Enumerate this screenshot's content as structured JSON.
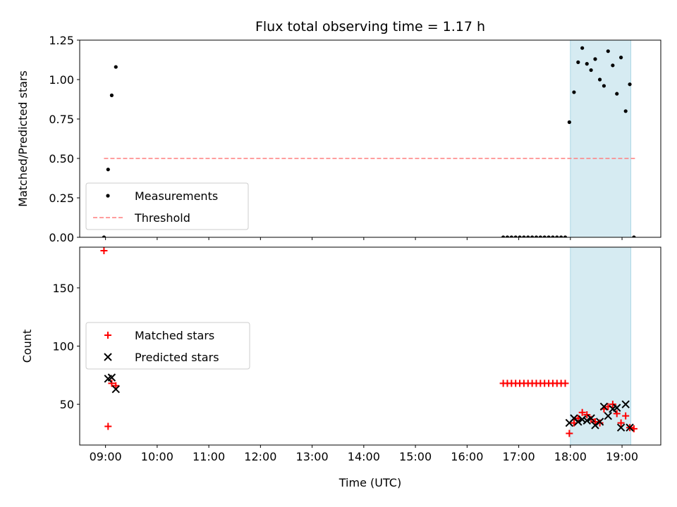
{
  "chart_data": [
    {
      "type": "scatter",
      "title": "Flux total observing time = 1.17 h",
      "xlabel": "",
      "ylabel": "Matched/Predicted stars",
      "xlim": [
        8.5,
        19.75
      ],
      "ylim": [
        0,
        1.25
      ],
      "yticks": [
        0,
        0.25,
        0.5,
        0.75,
        1.0,
        1.25
      ],
      "ytick_labels": [
        "0.00",
        "0.25",
        "0.50",
        "0.75",
        "1.00",
        "1.25"
      ],
      "grid": false,
      "legend_position": "lower-left",
      "highlight_span": [
        18.0,
        19.17
      ],
      "series": [
        {
          "name": "Measurements",
          "marker": "dot",
          "color": "#000000",
          "x": [
            8.97,
            9.05,
            9.12,
            9.2,
            16.7,
            16.78,
            16.86,
            16.94,
            17.02,
            17.1,
            17.18,
            17.26,
            17.34,
            17.42,
            17.5,
            17.58,
            17.66,
            17.74,
            17.82,
            17.9,
            17.98,
            18.07,
            18.15,
            18.23,
            18.32,
            18.4,
            18.48,
            18.57,
            18.65,
            18.73,
            18.82,
            18.9,
            18.98,
            19.07,
            19.15,
            19.23
          ],
          "y": [
            0.0,
            0.43,
            0.9,
            1.08,
            0.0,
            0.0,
            0.0,
            0.0,
            0.0,
            0.0,
            0.0,
            0.0,
            0.0,
            0.0,
            0.0,
            0.0,
            0.0,
            0.0,
            0.0,
            0.0,
            0.73,
            0.92,
            1.11,
            1.2,
            1.1,
            1.06,
            1.13,
            1.0,
            0.96,
            1.18,
            1.09,
            0.91,
            1.14,
            0.8,
            0.97,
            0.0
          ]
        },
        {
          "name": "Threshold",
          "line_style": "dashed",
          "color": "#ff7f7f",
          "x": [
            8.97,
            19.25
          ],
          "y": [
            0.5,
            0.5
          ]
        }
      ]
    },
    {
      "type": "scatter",
      "title": "",
      "xlabel": "Time (UTC)",
      "ylabel": "Count",
      "xlim": [
        8.5,
        19.75
      ],
      "ylim": [
        15,
        185
      ],
      "xticks": [
        9,
        10,
        11,
        12,
        13,
        14,
        15,
        16,
        17,
        18,
        19
      ],
      "xtick_labels": [
        "09:00",
        "10:00",
        "11:00",
        "12:00",
        "13:00",
        "14:00",
        "15:00",
        "16:00",
        "17:00",
        "18:00",
        "19:00"
      ],
      "yticks": [
        50,
        100,
        150
      ],
      "ytick_labels": [
        "50",
        "100",
        "150"
      ],
      "grid": false,
      "legend_position": "center-left",
      "highlight_span": [
        18.0,
        19.17
      ],
      "series": [
        {
          "name": "Matched stars",
          "marker": "plus",
          "color": "#ff0000",
          "x": [
            8.97,
            9.05,
            9.12,
            9.2,
            16.7,
            16.78,
            16.86,
            16.94,
            17.02,
            17.1,
            17.18,
            17.26,
            17.34,
            17.42,
            17.5,
            17.58,
            17.66,
            17.74,
            17.82,
            17.9,
            17.98,
            18.07,
            18.15,
            18.23,
            18.32,
            18.4,
            18.48,
            18.57,
            18.65,
            18.73,
            18.82,
            18.9,
            18.98,
            19.07,
            19.15,
            19.23
          ],
          "y": [
            182,
            31,
            68,
            66,
            68,
            68,
            68,
            68,
            68,
            68,
            68,
            68,
            68,
            68,
            68,
            68,
            68,
            68,
            68,
            68,
            25,
            34,
            38,
            43,
            41,
            37,
            35,
            34,
            46,
            48,
            50,
            42,
            34,
            40,
            30,
            29
          ]
        },
        {
          "name": "Predicted stars",
          "marker": "x",
          "color": "#000000",
          "x": [
            9.05,
            9.12,
            9.2,
            17.98,
            18.07,
            18.15,
            18.23,
            18.32,
            18.4,
            18.48,
            18.57,
            18.65,
            18.73,
            18.82,
            18.9,
            18.98,
            19.07,
            19.15
          ],
          "y": [
            72,
            73,
            63,
            34,
            38,
            35,
            37,
            36,
            38,
            32,
            35,
            48,
            40,
            46,
            47,
            30,
            50,
            30
          ]
        }
      ]
    }
  ]
}
